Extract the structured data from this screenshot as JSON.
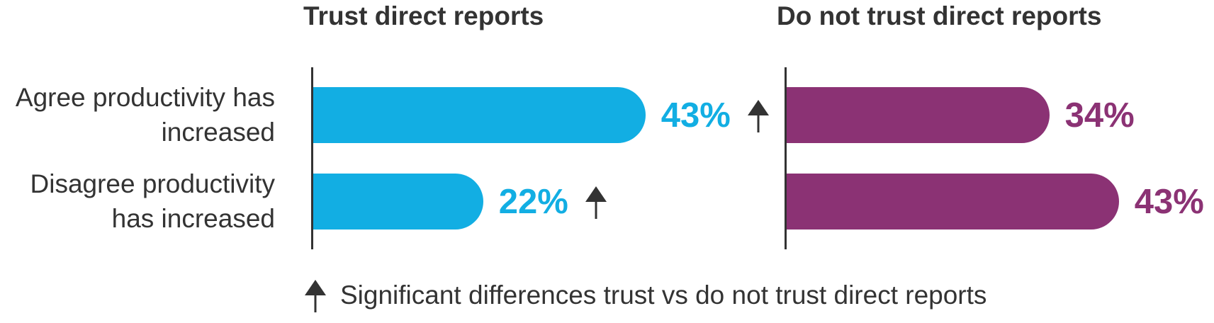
{
  "chart_data": [
    {
      "type": "bar",
      "orientation": "horizontal",
      "title": "Trust direct reports",
      "categories": [
        "Agree productivity has increased",
        "Disagree productivity has increased"
      ],
      "values": [
        43,
        22
      ],
      "value_labels": [
        "43%",
        "22%"
      ],
      "color": "#12aee3",
      "significant": [
        true,
        true
      ]
    },
    {
      "type": "bar",
      "orientation": "horizontal",
      "title": "Do not trust direct reports",
      "values": [
        34,
        43
      ],
      "value_labels": [
        "34%",
        "43%"
      ],
      "color": "#8b3274",
      "significant": [
        false,
        false
      ]
    }
  ],
  "footnote": "Significant differences trust vs do not trust direct reports"
}
